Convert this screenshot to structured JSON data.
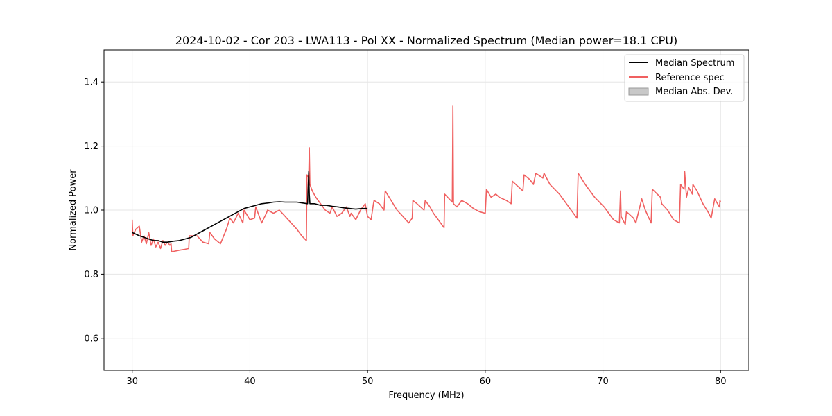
{
  "chart_data": {
    "type": "line",
    "title": "2024-10-02 - Cor 203 - LWA113 - Pol XX - Normalized Spectrum (Median power=18.1 CPU)",
    "xlabel": "Frequency (MHz)",
    "ylabel": "Normalized Power",
    "xlim": [
      27.6,
      82.4
    ],
    "ylim": [
      0.5,
      1.5
    ],
    "xticks": [
      30,
      40,
      50,
      60,
      70,
      80
    ],
    "yticks": [
      0.6,
      0.8,
      1.0,
      1.2,
      1.4
    ],
    "xtick_labels": [
      "30",
      "40",
      "50",
      "60",
      "70",
      "80"
    ],
    "ytick_labels": [
      "0.6",
      "0.8",
      "1.0",
      "1.2",
      "1.4"
    ],
    "grid": true,
    "legend_position": "top-right",
    "legend": [
      {
        "label": "Median Spectrum",
        "kind": "line",
        "color": "#000000"
      },
      {
        "label": "Reference spec",
        "kind": "line",
        "color": "#f06060"
      },
      {
        "label": "Median Abs. Dev.",
        "kind": "patch",
        "color": "#c8c8c8"
      }
    ],
    "series": [
      {
        "name": "Median Spectrum",
        "color": "#000000",
        "x": [
          30.0,
          30.3,
          30.6,
          31.0,
          31.4,
          31.8,
          32.2,
          32.6,
          33.0,
          33.5,
          34.0,
          34.5,
          35.0,
          35.5,
          36.0,
          36.5,
          37.0,
          37.5,
          38.0,
          38.5,
          39.0,
          39.5,
          40.0,
          40.5,
          41.0,
          41.5,
          42.0,
          42.5,
          43.0,
          43.5,
          44.0,
          44.5,
          44.9,
          45.0,
          45.05,
          45.1,
          45.5,
          46.0,
          46.5,
          47.0,
          47.5,
          48.0,
          48.5,
          49.0,
          49.5,
          50.0
        ],
        "y": [
          0.93,
          0.925,
          0.92,
          0.915,
          0.91,
          0.905,
          0.905,
          0.9,
          0.9,
          0.903,
          0.905,
          0.91,
          0.915,
          0.925,
          0.935,
          0.945,
          0.955,
          0.965,
          0.975,
          0.985,
          0.995,
          1.005,
          1.01,
          1.015,
          1.02,
          1.022,
          1.025,
          1.026,
          1.025,
          1.025,
          1.025,
          1.022,
          1.02,
          1.12,
          1.05,
          1.02,
          1.02,
          1.015,
          1.015,
          1.012,
          1.01,
          1.007,
          1.005,
          1.003,
          1.005,
          1.005
        ]
      },
      {
        "name": "Reference spec",
        "color": "#f06060",
        "x": [
          30.0,
          30.05,
          30.3,
          30.6,
          30.8,
          31.0,
          31.2,
          31.4,
          31.6,
          31.8,
          32.0,
          32.2,
          32.4,
          32.6,
          32.8,
          33.0,
          33.2,
          33.3,
          33.35,
          34.0,
          34.5,
          34.8,
          34.85,
          35.5,
          36.0,
          36.5,
          36.6,
          37.0,
          37.5,
          38.0,
          38.3,
          38.6,
          39.0,
          39.4,
          39.5,
          40.0,
          40.4,
          40.5,
          41.0,
          41.4,
          41.5,
          42.0,
          42.5,
          43.0,
          43.5,
          44.0,
          44.4,
          44.8,
          44.85,
          45.0,
          45.05,
          45.1,
          45.3,
          45.6,
          46.0,
          46.4,
          46.8,
          47.0,
          47.4,
          47.8,
          48.2,
          48.5,
          48.6,
          49.0,
          49.4,
          49.8,
          50.0,
          50.3,
          50.5,
          50.55,
          51.0,
          51.4,
          51.5,
          52.0,
          52.5,
          53.0,
          53.5,
          53.8,
          53.85,
          54.2,
          54.8,
          54.9,
          55.3,
          55.6,
          56.0,
          56.5,
          56.55,
          57.2,
          57.25,
          57.3,
          57.6,
          58.0,
          58.5,
          59.0,
          59.5,
          60.0,
          60.1,
          60.5,
          60.9,
          61.2,
          61.8,
          62.2,
          62.3,
          62.9,
          63.2,
          63.3,
          63.8,
          64.1,
          64.3,
          64.9,
          65.0,
          65.5,
          66.3,
          67.1,
          67.8,
          67.9,
          68.5,
          69.3,
          70.1,
          70.9,
          71.4,
          71.5,
          71.55,
          71.9,
          72.0,
          72.6,
          72.8,
          73.3,
          73.6,
          74.1,
          74.2,
          74.9,
          75.0,
          75.5,
          76.0,
          76.5,
          76.6,
          76.9,
          76.95,
          77.1,
          77.3,
          77.6,
          77.65,
          78.0,
          78.5,
          79.0,
          79.2,
          79.5,
          79.9,
          79.95,
          80.0
        ],
        "y": [
          0.97,
          0.92,
          0.94,
          0.95,
          0.9,
          0.92,
          0.895,
          0.93,
          0.89,
          0.91,
          0.885,
          0.9,
          0.88,
          0.905,
          0.89,
          0.9,
          0.89,
          0.895,
          0.87,
          0.875,
          0.878,
          0.88,
          0.92,
          0.92,
          0.9,
          0.895,
          0.93,
          0.91,
          0.895,
          0.94,
          0.975,
          0.96,
          0.99,
          0.96,
          1.0,
          0.97,
          0.975,
          1.01,
          0.96,
          0.99,
          1.0,
          0.99,
          1.0,
          0.98,
          0.96,
          0.94,
          0.92,
          0.905,
          1.11,
          1.1,
          1.195,
          1.08,
          1.06,
          1.04,
          1.02,
          1.0,
          0.99,
          1.01,
          0.98,
          0.99,
          1.01,
          0.98,
          0.99,
          0.97,
          1.0,
          1.02,
          0.98,
          0.97,
          1.02,
          1.03,
          1.02,
          1.0,
          1.06,
          1.03,
          1.0,
          0.98,
          0.96,
          0.975,
          1.03,
          1.02,
          1.0,
          1.03,
          1.01,
          0.99,
          0.97,
          0.945,
          1.05,
          1.025,
          1.325,
          1.02,
          1.01,
          1.03,
          1.02,
          1.005,
          0.995,
          0.99,
          1.065,
          1.04,
          1.05,
          1.04,
          1.03,
          1.02,
          1.09,
          1.07,
          1.06,
          1.11,
          1.095,
          1.08,
          1.115,
          1.1,
          1.115,
          1.08,
          1.05,
          1.01,
          0.975,
          1.115,
          1.08,
          1.04,
          1.01,
          0.97,
          0.96,
          1.06,
          0.98,
          0.955,
          0.995,
          0.975,
          0.96,
          1.035,
          1.0,
          0.96,
          1.065,
          1.04,
          1.02,
          1.0,
          0.97,
          0.96,
          1.08,
          1.065,
          1.12,
          1.04,
          1.07,
          1.05,
          1.08,
          1.06,
          1.02,
          0.99,
          0.975,
          1.035,
          1.01,
          1.03,
          1.025
        ]
      }
    ]
  }
}
